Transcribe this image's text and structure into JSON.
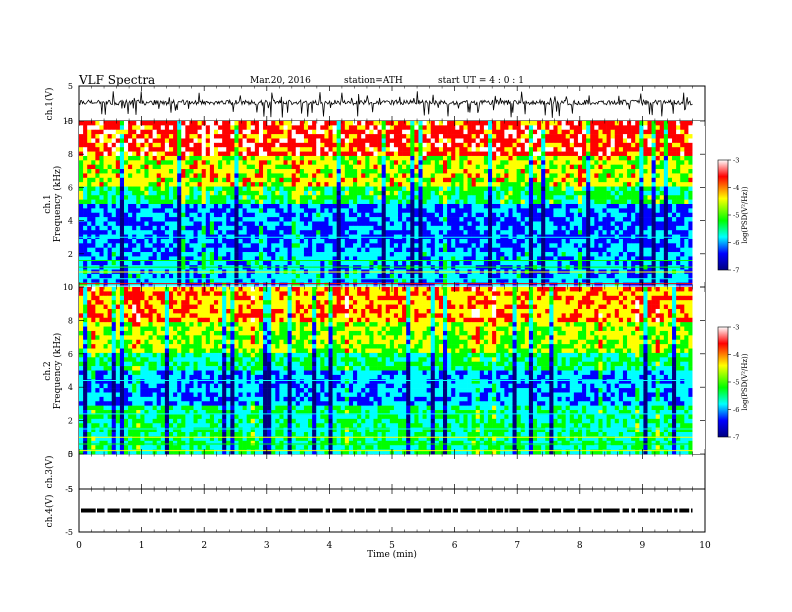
{
  "header": {
    "title": "VLF  Spectra",
    "date": "Mar.20, 2016",
    "station": "station=ATH",
    "start": "start  UT  =   4 : 0  : 1"
  },
  "colors": {
    "colormap": [
      "#ffffff",
      "#ff0000",
      "#ffff00",
      "#00ff00",
      "#00ffff",
      "#0000ff",
      "#000080"
    ],
    "trace": "#000000"
  },
  "chart_data": [
    {
      "type": "line",
      "panel": "ch1-waveform",
      "ylabel": "ch.1(V)",
      "ylim": [
        -5,
        5
      ],
      "yticks": [
        "5",
        "-5"
      ],
      "mean_level": 0.3,
      "description_values": {
        "baseline_V": 0.3,
        "spike_min_V": -4.5,
        "spike_max_V": 3.5
      }
    },
    {
      "type": "heatmap",
      "panel": "ch1-spectrogram",
      "ylabel": "Frequency (kHz)",
      "panel_label": "ch.1",
      "ylim": [
        0,
        10
      ],
      "yticks": [
        "0",
        "2",
        "4",
        "6",
        "8",
        "10"
      ],
      "colorbar": {
        "label": "log(PSD(V²/Hz))",
        "ticks": [
          "-3",
          "-4",
          "-5",
          "-6",
          "-7"
        ],
        "range": [
          -7,
          -3
        ]
      }
    },
    {
      "type": "heatmap",
      "panel": "ch2-spectrogram",
      "ylabel": "Frequency (kHz)",
      "panel_label": "ch.2",
      "ylim": [
        0,
        10
      ],
      "yticks": [
        "0",
        "2",
        "4",
        "6",
        "8",
        "10"
      ],
      "colorbar": {
        "label": "log(PSD(V²/Hz))",
        "ticks": [
          "-3",
          "-4",
          "-5",
          "-6",
          "-7"
        ],
        "range": [
          -7,
          -3
        ]
      }
    },
    {
      "type": "line",
      "panel": "ch3-waveform",
      "ylabel": "ch.3(V)",
      "ylim": [
        -5,
        5
      ],
      "yticks": [
        "5",
        "-5"
      ]
    },
    {
      "type": "line",
      "panel": "ch4-waveform",
      "ylabel": "ch.4(V)",
      "ylim": [
        -5,
        5
      ],
      "yticks": [
        "5",
        "-5"
      ],
      "mean_level": 0.0
    }
  ],
  "xaxis": {
    "label": "Time  (min)",
    "ticks": [
      "0",
      "1",
      "2",
      "3",
      "4",
      "5",
      "6",
      "7",
      "8",
      "9",
      "10"
    ],
    "xlim": [
      0,
      10
    ],
    "data_end_min": 9.8
  }
}
